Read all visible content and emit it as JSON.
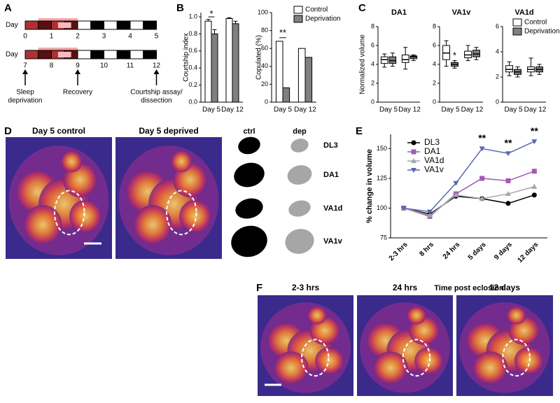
{
  "panel_letters": [
    "A",
    "B",
    "C",
    "D",
    "E",
    "F"
  ],
  "timeline": {
    "day_label": "Day",
    "row1": [
      "0",
      "1",
      "2",
      "3",
      "4",
      "5"
    ],
    "row2": [
      "7",
      "8",
      "9",
      "10",
      "11",
      "12"
    ],
    "arrows": [
      [
        "Sleep",
        "deprivation"
      ],
      [
        "Recovery"
      ],
      [
        "Courtship assay/",
        "dissection"
      ]
    ]
  },
  "chart_data": [
    {
      "type": "bar",
      "ylabel": "Courtship index",
      "categories": [
        "Day 5",
        "Day 12"
      ],
      "series": [
        {
          "color": "#ffffff",
          "values": [
            0.95,
            0.98
          ],
          "errors": [
            0.02,
            0.01
          ]
        },
        {
          "color": "#808080",
          "values": [
            0.8,
            0.92
          ],
          "errors": [
            0.05,
            0.03
          ]
        }
      ],
      "ylim": [
        0,
        1.05
      ],
      "yticks": [
        {
          "value": 0,
          "label": "0.0"
        },
        {
          "value": 0.2,
          "label": "0.2"
        },
        {
          "value": 0.4,
          "label": "0.4"
        },
        {
          "value": 0.6,
          "label": "0.6"
        },
        {
          "value": 0.8,
          "label": "0.8"
        },
        {
          "value": 1,
          "label": "1.0"
        }
      ],
      "annotations": [
        "*"
      ]
    },
    {
      "type": "bar",
      "ylabel": "Copulated (%)",
      "categories": [
        "Day 5",
        "Day 12"
      ],
      "series": [
        {
          "name": "Control",
          "color": "#ffffff",
          "values": [
            68,
            60
          ]
        },
        {
          "name": "Deprivation",
          "color": "#808080",
          "values": [
            16,
            50
          ]
        }
      ],
      "ylim": [
        0,
        100
      ],
      "yticks": [
        0,
        20,
        40,
        60,
        80,
        100
      ],
      "legend": "top-right",
      "annotations": [
        "**"
      ]
    },
    {
      "type": "box",
      "title": "DA1",
      "ylabel": "Normalized volume",
      "categories": [
        "Day 5",
        "Day 12"
      ],
      "series": [
        {
          "color": "#ffffff",
          "min": [
            3.7,
            3.5
          ],
          "q1": [
            4.1,
            4.2
          ],
          "median": [
            4.5,
            4.5
          ],
          "q3": [
            4.8,
            5.0
          ],
          "max": [
            5.1,
            5.8
          ]
        },
        {
          "color": "#808080",
          "min": [
            3.8,
            4.4
          ],
          "q1": [
            4.1,
            4.6
          ],
          "median": [
            4.4,
            4.8
          ],
          "q3": [
            4.8,
            4.9
          ],
          "max": [
            5.2,
            5.0
          ]
        }
      ],
      "ylim": [
        0,
        8
      ],
      "yticks": [
        0,
        2,
        4,
        6,
        8
      ]
    },
    {
      "type": "box",
      "title": "VA1v",
      "categories": [
        "Day 5",
        "Day 12"
      ],
      "series": [
        {
          "color": "#ffffff",
          "min": [
            3.8,
            4.4
          ],
          "q1": [
            4.5,
            4.7
          ],
          "median": [
            5.2,
            5.0
          ],
          "q3": [
            6.0,
            5.4
          ],
          "max": [
            6.5,
            6.0
          ]
        },
        {
          "color": "#808080",
          "min": [
            3.6,
            4.5
          ],
          "q1": [
            3.8,
            4.8
          ],
          "median": [
            4.0,
            5.1
          ],
          "q3": [
            4.2,
            5.5
          ],
          "max": [
            4.4,
            5.8
          ]
        }
      ],
      "ylim": [
        0,
        8
      ],
      "yticks": [
        0,
        2,
        4,
        6,
        8
      ],
      "annotations": [
        "*"
      ]
    },
    {
      "type": "box",
      "title": "VA1d",
      "categories": [
        "Day 5",
        "Day 12"
      ],
      "series": [
        {
          "name": "Control",
          "color": "#ffffff",
          "min": [
            2.1,
            2.1
          ],
          "q1": [
            2.4,
            2.4
          ],
          "median": [
            2.6,
            2.6
          ],
          "q3": [
            2.9,
            2.8
          ],
          "max": [
            3.2,
            3.5
          ]
        },
        {
          "name": "Deprivation",
          "color": "#808080",
          "min": [
            2.0,
            2.2
          ],
          "q1": [
            2.2,
            2.4
          ],
          "median": [
            2.4,
            2.6
          ],
          "q3": [
            2.6,
            2.8
          ],
          "max": [
            2.8,
            3.0
          ]
        }
      ],
      "ylim": [
        0,
        6
      ],
      "yticks": [
        0,
        2,
        4,
        6
      ],
      "legend": "top-right"
    },
    {
      "type": "line",
      "ylabel": "% change in volume",
      "xlabel": "Time post eclosion",
      "categories": [
        "2-3 hrs",
        "8 hrs",
        "24 hrs",
        "5 days",
        "9 days",
        "12 days"
      ],
      "series": [
        {
          "name": "DL3",
          "color": "#000000",
          "values": [
            100,
            95,
            110,
            108,
            104,
            111
          ]
        },
        {
          "name": "DA1",
          "color": "#a05cb5",
          "values": [
            100,
            93,
            112,
            125,
            123,
            131
          ]
        },
        {
          "name": "VA1d",
          "color": "#a6a6a6",
          "values": [
            100,
            94,
            111,
            108,
            112,
            118
          ]
        },
        {
          "name": "VA1v",
          "color": "#5b67b0",
          "values": [
            100,
            97,
            121,
            150,
            146,
            156
          ]
        }
      ],
      "ylim": [
        75,
        162
      ],
      "yticks": [
        75,
        100,
        125,
        150
      ],
      "legend": "top-left",
      "annotations": [
        "**",
        "**",
        "**"
      ]
    }
  ],
  "images": {
    "d_titles": [
      "Day 5 control",
      "Day 5 deprived"
    ],
    "schematic_headers": [
      "ctrl",
      "dep"
    ],
    "glomeruli": [
      "DL3",
      "DA1",
      "VA1d",
      "VA1v"
    ],
    "f_titles": [
      "2-3 hrs",
      "24 hrs",
      "12 days"
    ]
  }
}
